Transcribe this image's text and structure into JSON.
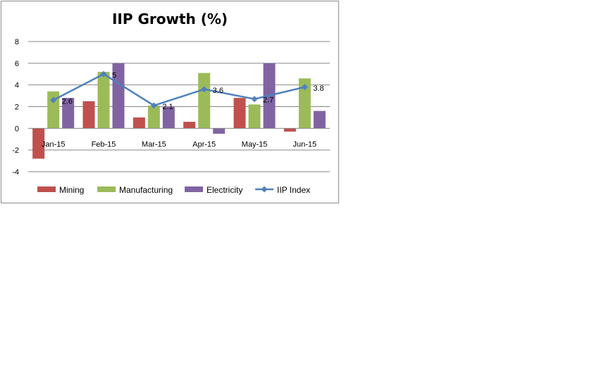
{
  "chart_data": {
    "type": "bar",
    "title": "IIP Growth (%)",
    "xlabel": "",
    "ylabel": "",
    "categories": [
      "Jan-15",
      "Feb-15",
      "Mar-15",
      "Apr-15",
      "May-15",
      "Jun-15"
    ],
    "ylim": [
      -4,
      8
    ],
    "yticks": [
      -4,
      -2,
      0,
      2,
      4,
      6,
      8
    ],
    "grid": true,
    "legend_position": "bottom",
    "series": [
      {
        "name": "Mining",
        "type": "bar",
        "color": "#C0504D",
        "values": [
          -2.8,
          2.5,
          1.0,
          0.6,
          2.8,
          -0.3
        ]
      },
      {
        "name": "Manufacturing",
        "type": "bar",
        "color": "#9BBB59",
        "values": [
          3.4,
          5.2,
          2.1,
          5.1,
          2.2,
          4.6
        ]
      },
      {
        "name": "Electricity",
        "type": "bar",
        "color": "#8064A2",
        "values": [
          2.8,
          6.0,
          2.0,
          -0.5,
          6.0,
          1.6
        ]
      },
      {
        "name": "IIP Index",
        "type": "line",
        "color": "#4F81BD",
        "values": [
          2.6,
          5.0,
          2.1,
          3.6,
          2.7,
          3.8
        ],
        "labels": [
          "2.6",
          "5",
          "2.1",
          "3.6",
          "2.7",
          "3.8"
        ]
      }
    ]
  }
}
